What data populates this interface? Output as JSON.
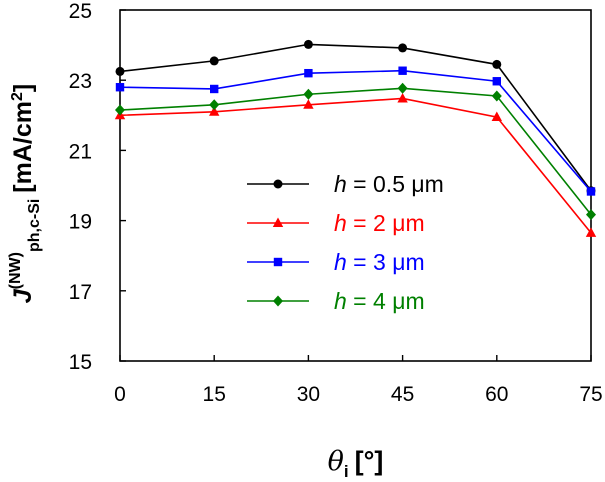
{
  "chart_data": {
    "type": "line",
    "x": [
      0,
      15,
      30,
      45,
      60,
      75
    ],
    "xlim": [
      0,
      75
    ],
    "ylim": [
      15,
      25
    ],
    "x_ticks": [
      "0",
      "15",
      "30",
      "45",
      "60",
      "75"
    ],
    "y_ticks": [
      "15",
      "17",
      "19",
      "21",
      "23",
      "25"
    ],
    "xlabel": {
      "symbol": "θ",
      "subscript": "i",
      "unit": "[°]"
    },
    "ylabel": {
      "symbol": "J",
      "superscript": "(NW)",
      "subscript": "ph,c-Si",
      "unit_prefix": "[mA/cm",
      "unit_power": "2",
      "unit_suffix": "]"
    },
    "grid": false,
    "legend_position": "center-right",
    "series": [
      {
        "name": "h = 0.5 μm",
        "var": "h",
        "rest": " = 0.5 μm",
        "color": "#000000",
        "marker": "circle",
        "values": [
          23.25,
          23.55,
          24.02,
          23.92,
          23.45,
          19.85
        ]
      },
      {
        "name": "h = 2 μm",
        "var": "h",
        "rest": " = 2 μm",
        "color": "#ff0000",
        "marker": "triangle",
        "values": [
          22.0,
          22.1,
          22.3,
          22.48,
          21.95,
          18.65
        ]
      },
      {
        "name": "h = 3 μm",
        "var": "h",
        "rest": " = 3 μm",
        "color": "#0000ff",
        "marker": "square",
        "values": [
          22.8,
          22.75,
          23.2,
          23.27,
          22.97,
          19.83
        ]
      },
      {
        "name": "h = 4 μm",
        "var": "h",
        "rest": " = 4 μm",
        "color": "#008000",
        "marker": "diamond",
        "values": [
          22.15,
          22.3,
          22.6,
          22.77,
          22.55,
          19.17
        ]
      }
    ]
  }
}
